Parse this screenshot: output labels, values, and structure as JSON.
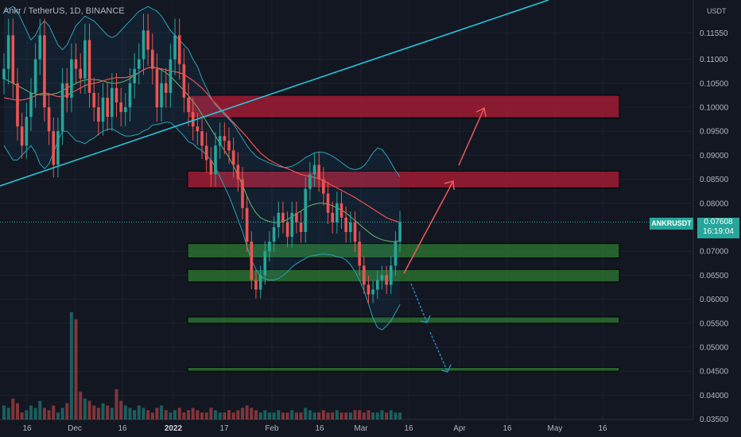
{
  "header": {
    "title": "Ankr / TetherUS, 1D, BINANCE",
    "unit": "USDT"
  },
  "symbol_tag": "ANKRUSDT",
  "price_tag": {
    "price": "0.07608",
    "countdown": "16:19:04"
  },
  "colors": {
    "background": "#131722",
    "up": "#26a69a",
    "down": "#ef5350",
    "trendline": "#26c6da",
    "resistance_zone": "#b71c34",
    "support_zone": "#2e7d32",
    "sma": "#ef5350",
    "bb_mid": "#66bb6a",
    "bb_band": "#2aa3b8"
  },
  "chart_data": {
    "type": "candlestick",
    "title": "Ankr / TetherUS, 1D, BINANCE",
    "ylim": [
      0.035,
      0.1205
    ],
    "y_ticks": [
      "0.11550",
      "0.11000",
      "0.10500",
      "0.10000",
      "0.09500",
      "0.09000",
      "0.08500",
      "0.08000",
      "0.07000",
      "0.06500",
      "0.06000",
      "0.05500",
      "0.05000",
      "0.04500",
      "0.04000",
      "0.03500"
    ],
    "x_ticks": [
      "16",
      "Dec",
      "16",
      "2022",
      "17",
      "Feb",
      "16",
      "Mar",
      "16",
      "Apr",
      "16",
      "May",
      "16"
    ],
    "bold_x_ticks": [
      "2022"
    ],
    "x_axis_dates": [
      "2021-11-16",
      "2021-12-01",
      "2021-12-16",
      "2022-01-01",
      "2022-01-17",
      "2022-02-01",
      "2022-02-16",
      "2022-03-01",
      "2022-03-16",
      "2022-04-01",
      "2022-04-16",
      "2022-05-01",
      "2022-05-16"
    ],
    "last_price": 0.07608,
    "closes": [
      0.108,
      0.115,
      0.105,
      0.096,
      0.092,
      0.098,
      0.103,
      0.11,
      0.115,
      0.1,
      0.095,
      0.088,
      0.095,
      0.105,
      0.102,
      0.11,
      0.108,
      0.106,
      0.114,
      0.103,
      0.1,
      0.097,
      0.102,
      0.098,
      0.104,
      0.101,
      0.099,
      0.1,
      0.105,
      0.108,
      0.11,
      0.116,
      0.112,
      0.108,
      0.1,
      0.105,
      0.103,
      0.11,
      0.115,
      0.109,
      0.102,
      0.099,
      0.096,
      0.095,
      0.092,
      0.089,
      0.086,
      0.092,
      0.094,
      0.093,
      0.091,
      0.088,
      0.085,
      0.079,
      0.072,
      0.064,
      0.062,
      0.065,
      0.07,
      0.072,
      0.075,
      0.078,
      0.076,
      0.073,
      0.078,
      0.076,
      0.074,
      0.083,
      0.086,
      0.088,
      0.085,
      0.082,
      0.078,
      0.076,
      0.08,
      0.077,
      0.074,
      0.076,
      0.072,
      0.067,
      0.063,
      0.061,
      0.062,
      0.064,
      0.065,
      0.063,
      0.067,
      0.072,
      0.0761
    ],
    "sma": [
      0.102,
      0.1018,
      0.1016,
      0.1015,
      0.1015,
      0.1017,
      0.102,
      0.1024,
      0.1028,
      0.103,
      0.1028,
      0.1025,
      0.1022,
      0.1022,
      0.1025,
      0.103,
      0.1035,
      0.104,
      0.1045,
      0.1048,
      0.105,
      0.1052,
      0.1055,
      0.1058,
      0.106,
      0.1062,
      0.1062,
      0.1062,
      0.1064,
      0.1068,
      0.1072,
      0.1078,
      0.1082,
      0.1084,
      0.1082,
      0.108,
      0.1078,
      0.1076,
      0.1074,
      0.1072,
      0.1068,
      0.1062,
      0.1056,
      0.1048,
      0.104,
      0.103,
      0.1018,
      0.1008,
      0.0998,
      0.0988,
      0.0978,
      0.0968,
      0.0958,
      0.0948,
      0.0938,
      0.0926,
      0.0915,
      0.0905,
      0.0897,
      0.089,
      0.0885,
      0.088,
      0.0876,
      0.0872,
      0.0868,
      0.0864,
      0.086,
      0.0858,
      0.0856,
      0.0854,
      0.0851,
      0.0847,
      0.0842,
      0.0837,
      0.0832,
      0.0827,
      0.0822,
      0.0817,
      0.0812,
      0.0806,
      0.08,
      0.0794,
      0.0788,
      0.0782,
      0.0776,
      0.077,
      0.0766,
      0.0763,
      0.076
    ],
    "bb_mid": [
      0.106,
      0.1055,
      0.105,
      0.1045,
      0.104,
      0.1035,
      0.103,
      0.1028,
      0.1026,
      0.1026,
      0.1026,
      0.1028,
      0.103,
      0.1035,
      0.104,
      0.1045,
      0.105,
      0.1054,
      0.1057,
      0.1058,
      0.1058,
      0.1057,
      0.1055,
      0.1052,
      0.105,
      0.105,
      0.1052,
      0.1055,
      0.106,
      0.1066,
      0.1072,
      0.1078,
      0.1082,
      0.1084,
      0.1082,
      0.1078,
      0.1072,
      0.1064,
      0.1055,
      0.1045,
      0.1035,
      0.1024,
      0.1012,
      0.1,
      0.0985,
      0.097,
      0.0955,
      0.094,
      0.0925,
      0.091,
      0.0895,
      0.0878,
      0.0858,
      0.0838,
      0.0815,
      0.0795,
      0.078,
      0.077,
      0.0765,
      0.0762,
      0.076,
      0.076,
      0.0762,
      0.0766,
      0.0772,
      0.0778,
      0.0784,
      0.079,
      0.0795,
      0.0798,
      0.08,
      0.08,
      0.0798,
      0.0795,
      0.079,
      0.0786,
      0.078,
      0.0772,
      0.0764,
      0.0756,
      0.0748,
      0.074,
      0.0733,
      0.0728,
      0.0724,
      0.0722,
      0.072,
      0.072,
      0.0722
    ],
    "bb_upper": [
      0.12,
      0.1205,
      0.121,
      0.12,
      0.118,
      0.116,
      0.114,
      0.115,
      0.117,
      0.118,
      0.117,
      0.115,
      0.113,
      0.112,
      0.113,
      0.115,
      0.117,
      0.118,
      0.119,
      0.1185,
      0.118,
      0.117,
      0.116,
      0.115,
      0.1145,
      0.115,
      0.116,
      0.117,
      0.118,
      0.119,
      0.12,
      0.1205,
      0.121,
      0.1205,
      0.12,
      0.119,
      0.1175,
      0.116,
      0.115,
      0.114,
      0.113,
      0.112,
      0.11,
      0.1085,
      0.106,
      0.104,
      0.102,
      0.1005,
      0.0995,
      0.0985,
      0.0975,
      0.0965,
      0.095,
      0.0935,
      0.092,
      0.0908,
      0.0898,
      0.0892,
      0.0888,
      0.0884,
      0.088,
      0.0877,
      0.0875,
      0.0875,
      0.0877,
      0.0882,
      0.0888,
      0.0895,
      0.09,
      0.0905,
      0.0907,
      0.0906,
      0.0903,
      0.0898,
      0.0892,
      0.0885,
      0.0878,
      0.0872,
      0.087,
      0.0872,
      0.0878,
      0.089,
      0.0905,
      0.0915,
      0.0912,
      0.09,
      0.0885,
      0.0868,
      0.0855
    ],
    "bb_lower": [
      0.092,
      0.0905,
      0.089,
      0.089,
      0.09,
      0.091,
      0.092,
      0.0906,
      0.0882,
      0.0872,
      0.0882,
      0.0906,
      0.093,
      0.095,
      0.095,
      0.094,
      0.093,
      0.0928,
      0.0924,
      0.0931,
      0.0936,
      0.0944,
      0.095,
      0.0954,
      0.0955,
      0.095,
      0.0944,
      0.094,
      0.094,
      0.0942,
      0.0944,
      0.0951,
      0.0954,
      0.0963,
      0.0964,
      0.0966,
      0.0969,
      0.0968,
      0.096,
      0.095,
      0.094,
      0.0928,
      0.0924,
      0.0915,
      0.091,
      0.09,
      0.089,
      0.0875,
      0.0855,
      0.0835,
      0.0815,
      0.0791,
      0.0766,
      0.0741,
      0.071,
      0.0682,
      0.0662,
      0.0648,
      0.0642,
      0.064,
      0.064,
      0.0643,
      0.0649,
      0.0657,
      0.0667,
      0.0674,
      0.068,
      0.0685,
      0.069,
      0.0691,
      0.0693,
      0.0694,
      0.0693,
      0.0692,
      0.0688,
      0.0687,
      0.0682,
      0.0672,
      0.0658,
      0.064,
      0.0618,
      0.059,
      0.0561,
      0.0541,
      0.0536,
      0.0544,
      0.0555,
      0.0572,
      0.0589
    ],
    "volumes": [
      0.6,
      0.5,
      0.9,
      0.7,
      0.3,
      0.4,
      0.6,
      0.5,
      0.8,
      0.5,
      0.4,
      0.6,
      0.3,
      0.5,
      0.7,
      4.6,
      4.3,
      1.2,
      0.9,
      0.8,
      0.6,
      0.5,
      0.7,
      0.6,
      0.5,
      1.3,
      0.8,
      0.6,
      0.5,
      0.4,
      0.6,
      0.5,
      0.4,
      0.3,
      0.5,
      0.6,
      0.4,
      0.3,
      0.4,
      0.5,
      0.3,
      0.4,
      0.5,
      0.4,
      0.3,
      0.3,
      0.5,
      0.4,
      0.3,
      0.3,
      0.4,
      0.3,
      0.4,
      0.5,
      0.6,
      0.5,
      0.4,
      0.3,
      0.4,
      0.3,
      0.3,
      0.4,
      0.3,
      0.3,
      0.4,
      0.3,
      0.3,
      0.5,
      0.4,
      0.3,
      0.3,
      0.4,
      0.3,
      0.3,
      0.4,
      0.3,
      0.3,
      0.3,
      0.4,
      0.4,
      0.3,
      0.4,
      0.3,
      0.3,
      0.4,
      0.3,
      0.4,
      0.3,
      0.3
    ],
    "zones": [
      {
        "type": "resistance",
        "y_top": 0.1025,
        "y_bottom": 0.0978
      },
      {
        "type": "resistance",
        "y_top": 0.0867,
        "y_bottom": 0.0832
      },
      {
        "type": "support",
        "y_top": 0.0716,
        "y_bottom": 0.0686
      },
      {
        "type": "support",
        "y_top": 0.0662,
        "y_bottom": 0.0636
      },
      {
        "type": "support",
        "y_top": 0.0563,
        "y_bottom": 0.055
      },
      {
        "type": "support",
        "y_top": 0.0458,
        "y_bottom": 0.045
      }
    ],
    "grid": true
  }
}
